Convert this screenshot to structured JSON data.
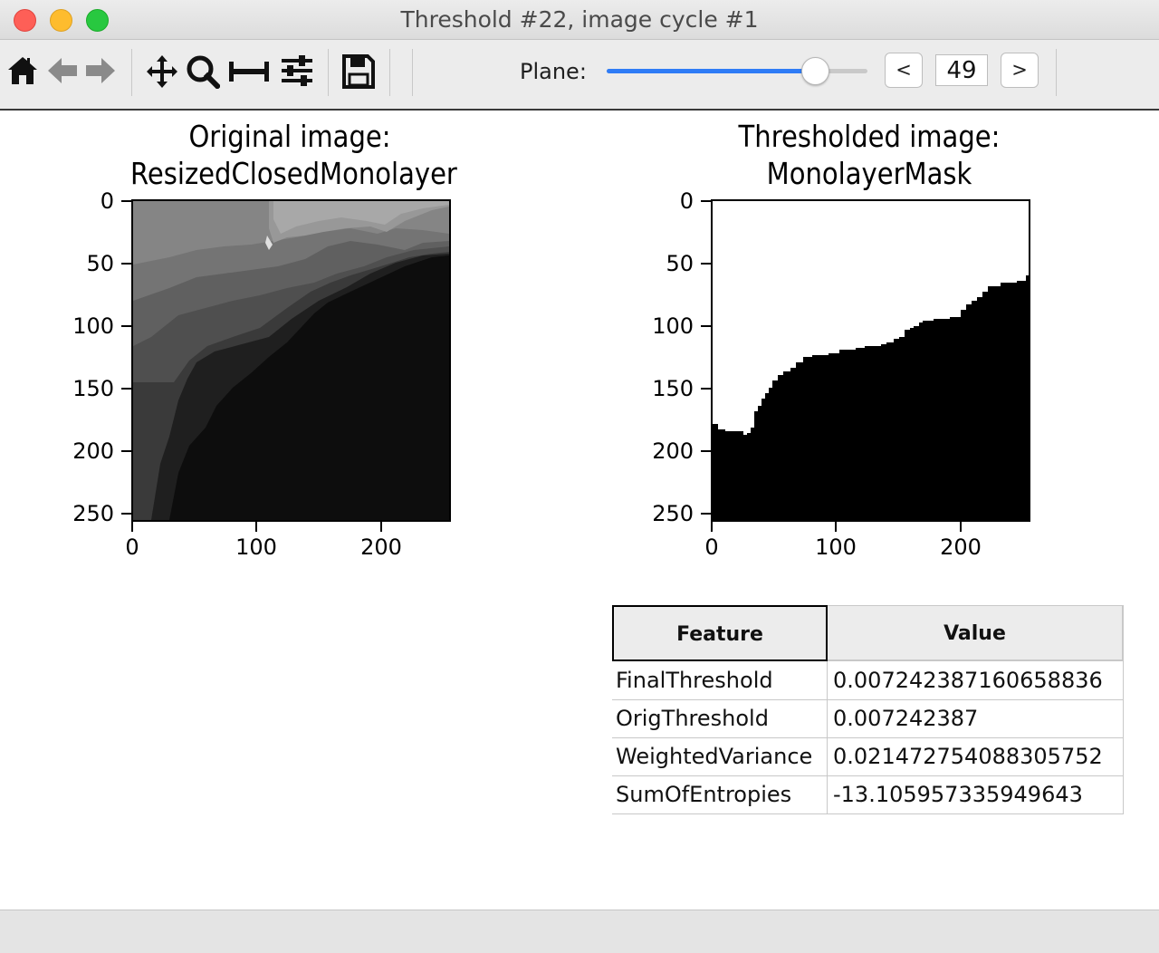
{
  "window": {
    "title": "Threshold #22, image cycle #1"
  },
  "toolbar": {
    "icons": [
      "home-icon",
      "back-arrow-icon",
      "forward-arrow-icon",
      "pan-icon",
      "zoom-icon",
      "subplots-icon",
      "configure-icon",
      "save-icon"
    ],
    "plane_label": "Plane:",
    "plane_value": "49",
    "plane_fraction": 0.8,
    "prev_label": "<",
    "next_label": ">",
    "accent_color": "#2f7cf6"
  },
  "plots": [
    {
      "title_line1": "Original image:",
      "title_line2": "ResizedClosedMonolayer",
      "x_ticks": [
        "0",
        "100",
        "200"
      ],
      "y_ticks": [
        "0",
        "50",
        "100",
        "150",
        "200",
        "250"
      ],
      "colormap": "gray"
    },
    {
      "title_line1": "Thresholded image:",
      "title_line2": "MonolayerMask",
      "x_ticks": [
        "0",
        "100",
        "200"
      ],
      "y_ticks": [
        "0",
        "50",
        "100",
        "150",
        "200",
        "250"
      ],
      "colormap": "binary"
    }
  ],
  "table": {
    "headers": [
      "Feature",
      "Value"
    ],
    "rows": [
      {
        "feature": "FinalThreshold",
        "value": "0.007242387160658836"
      },
      {
        "feature": "OrigThreshold",
        "value": "0.007242387"
      },
      {
        "feature": "WeightedVariance",
        "value": "0.021472754088305752"
      },
      {
        "feature": "SumOfEntropies",
        "value": "-13.105957335949643"
      }
    ]
  }
}
